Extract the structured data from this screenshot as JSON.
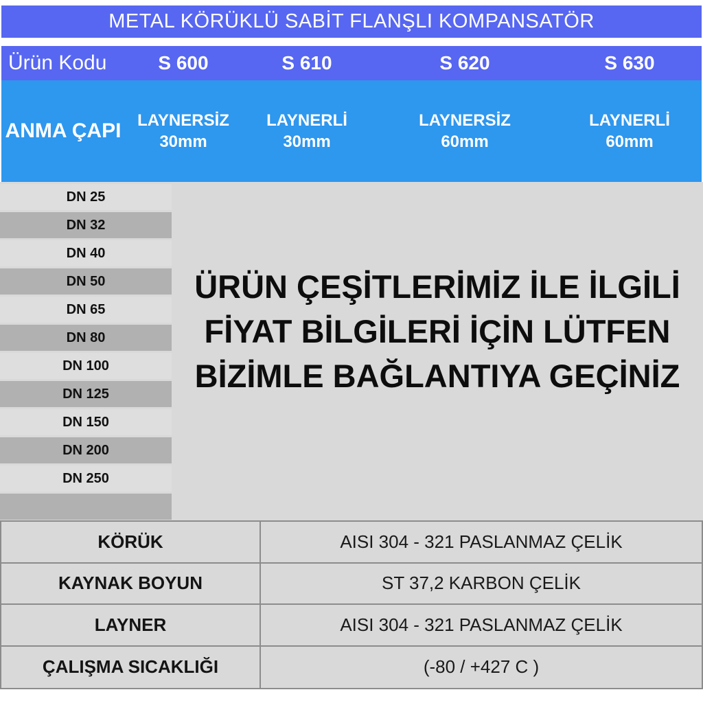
{
  "title": "METAL KÖRÜKLÜ SABİT FLANŞLI KOMPANSATÖR",
  "colors": {
    "title_bar": "#5767F1",
    "code_row": "#5767F1",
    "anma_row": "#2E97EE",
    "main_background": "#D9D9D9",
    "dn_row_light": "#DEDEDE",
    "dn_row_dark": "#B1B1B1",
    "table_border": "#8C8C8C",
    "header_text": "#FFFFFF",
    "body_text": "#111111"
  },
  "header": {
    "row_label": "Ürün Kodu",
    "anma_capi_label": "ANMA ÇAPI",
    "columns": [
      {
        "code": "S 600",
        "liner": "LAYNERSİZ",
        "size": "30mm"
      },
      {
        "code": "S 610",
        "liner": "LAYNERLİ",
        "size": "30mm"
      },
      {
        "code": "S 620",
        "liner": "LAYNERSİZ",
        "size": "60mm"
      },
      {
        "code": "S 630",
        "liner": "LAYNERLİ",
        "size": "60mm"
      }
    ]
  },
  "dn_rows": [
    "DN 25",
    "DN 32",
    "DN 40",
    "DN 50",
    "DN 65",
    "DN 80",
    "DN 100",
    "DN 125",
    "DN 150",
    "DN 200",
    "DN 250",
    ""
  ],
  "notice": {
    "line1": "ÜRÜN ÇEŞİTLERİMİZ İLE İLGİLİ",
    "line2": "FİYAT BİLGİLERİ İÇİN LÜTFEN",
    "line3": "BİZİMLE BAĞLANTIYA GEÇİNİZ"
  },
  "specs": [
    {
      "label": "KÖRÜK",
      "value": "AISI 304 - 321 PASLANMAZ ÇELİK"
    },
    {
      "label": "KAYNAK BOYUN",
      "value": "ST 37,2 KARBON ÇELİK"
    },
    {
      "label": "LAYNER",
      "value": "AISI 304 - 321 PASLANMAZ ÇELİK"
    },
    {
      "label": "ÇALIŞMA SICAKLIĞI",
      "value": "(-80 / +427 C )"
    }
  ]
}
